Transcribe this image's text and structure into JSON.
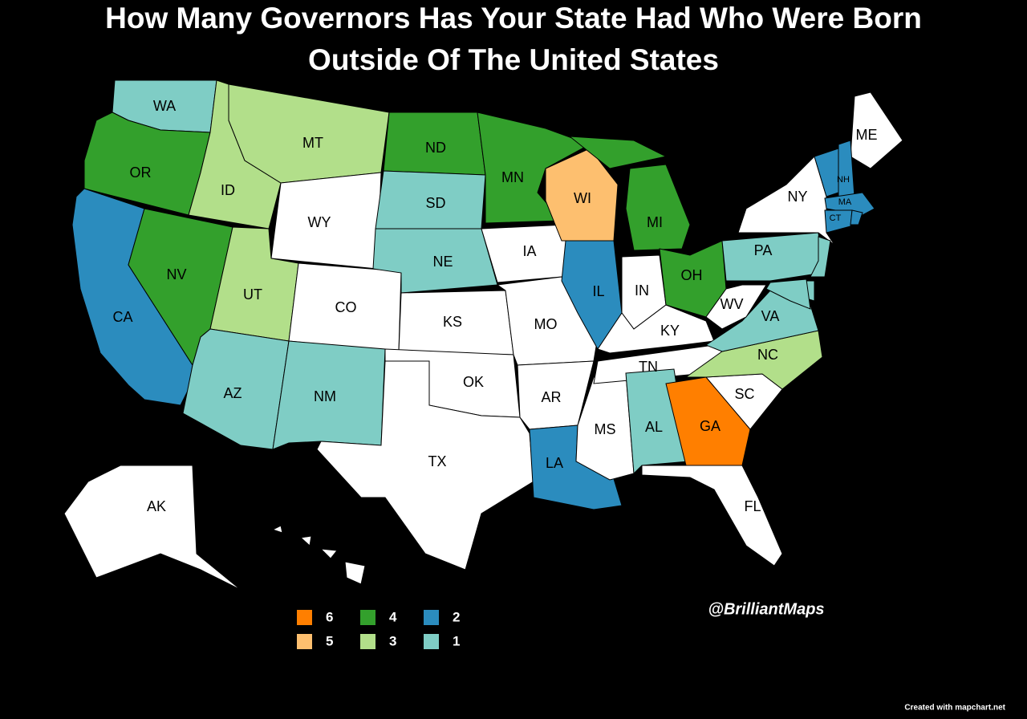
{
  "title": [
    "How Many Governors Has Your State Had Who Were Born",
    "Outside Of The United States"
  ],
  "zero_color": "#ffffff",
  "states": [
    {
      "label": "WA",
      "value": 1
    },
    {
      "label": "OR",
      "value": 4
    },
    {
      "label": "CA",
      "value": 2
    },
    {
      "label": "ID",
      "value": 3
    },
    {
      "label": "NV",
      "value": 4
    },
    {
      "label": "MT",
      "value": 3
    },
    {
      "label": "WY",
      "value": 0
    },
    {
      "label": "UT",
      "value": 3
    },
    {
      "label": "AZ",
      "value": 1
    },
    {
      "label": "CO",
      "value": 0
    },
    {
      "label": "NM",
      "value": 1
    },
    {
      "label": "ND",
      "value": 4
    },
    {
      "label": "SD",
      "value": 1
    },
    {
      "label": "NE",
      "value": 1
    },
    {
      "label": "KS",
      "value": 0
    },
    {
      "label": "OK",
      "value": 0
    },
    {
      "label": "TX",
      "value": 0
    },
    {
      "label": "MN",
      "value": 4
    },
    {
      "label": "IA",
      "value": 0
    },
    {
      "label": "MO",
      "value": 0
    },
    {
      "label": "AR",
      "value": 0
    },
    {
      "label": "LA",
      "value": 2
    },
    {
      "label": "WI",
      "value": 5
    },
    {
      "label": "IL",
      "value": 2
    },
    {
      "label": "MS",
      "value": 0
    },
    {
      "label": "MI",
      "value": 4
    },
    {
      "label": "IN",
      "value": 0
    },
    {
      "label": "KY",
      "value": 0
    },
    {
      "label": "TN",
      "value": 0
    },
    {
      "label": "AL",
      "value": 1
    },
    {
      "label": "OH",
      "value": 4
    },
    {
      "label": "GA",
      "value": 6
    },
    {
      "label": "FL",
      "value": 0
    },
    {
      "label": "SC",
      "value": 0
    },
    {
      "label": "NC",
      "value": 3
    },
    {
      "label": "VA",
      "value": 1
    },
    {
      "label": "WV",
      "value": 0
    },
    {
      "label": "PA",
      "value": 1
    },
    {
      "label": "NY",
      "value": 0
    },
    {
      "label": "ME",
      "value": 0
    },
    {
      "label": "NH",
      "value": 2
    },
    {
      "label": "MA",
      "value": 2
    },
    {
      "label": "CT",
      "value": 2
    },
    {
      "label": "AK",
      "value": 0
    },
    {
      "label": null,
      "value": 2
    },
    {
      "label": null,
      "value": 2
    },
    {
      "label": null,
      "value": 1
    },
    {
      "label": null,
      "value": 1
    },
    {
      "label": null,
      "value": 1
    },
    {
      "label": null,
      "value": 0
    }
  ],
  "legend": [
    {
      "value": 6,
      "color": "#ff7f00"
    },
    {
      "value": 5,
      "color": "#fdbf6f"
    },
    {
      "value": 4,
      "color": "#33a02c"
    },
    {
      "value": 3,
      "color": "#b2df8a"
    },
    {
      "value": 2,
      "color": "#2b8cbe"
    },
    {
      "value": 1,
      "color": "#7fcdc5"
    }
  ],
  "handle": "@BrilliantMaps",
  "credit": "Created with mapchart.net"
}
